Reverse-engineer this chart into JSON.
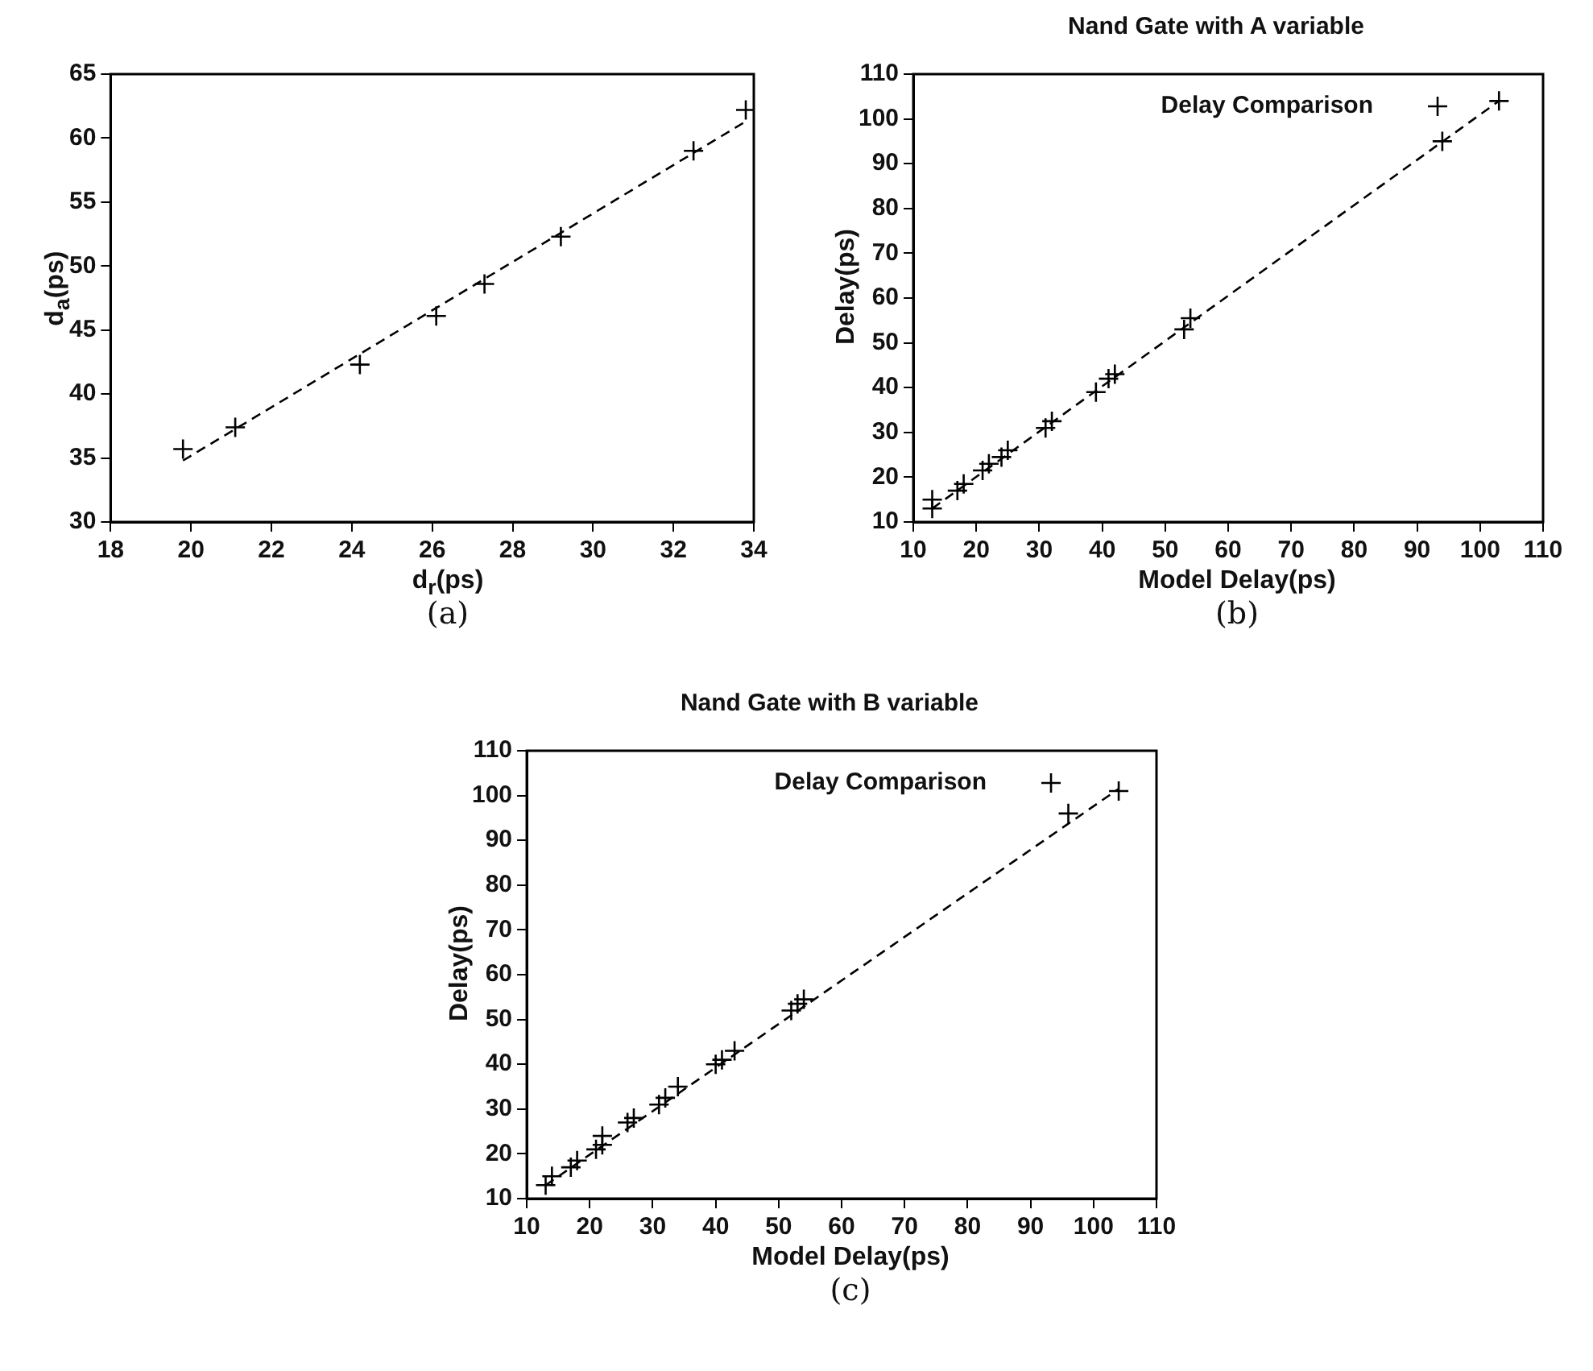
{
  "chart_data": [
    {
      "type": "scatter",
      "xlabel": "d$_{r}$(ps)",
      "ylabel": "d$_{a}$(ps)",
      "annotations": [
        "(a)"
      ],
      "xlim": [
        18,
        34
      ],
      "xticks": [
        18,
        20,
        22,
        24,
        26,
        28,
        30,
        32,
        34
      ],
      "ylim": [
        30,
        65
      ],
      "yticks": [
        30,
        35,
        40,
        45,
        50,
        55,
        60,
        65
      ],
      "grid": false,
      "legend": false,
      "series": [
        {
          "marker": "cross",
          "color": "#000000",
          "x": [
            19.8,
            21.1,
            24.2,
            26.1,
            27.3,
            29.2,
            32.5,
            33.8
          ],
          "values": [
            35.7,
            37.4,
            42.3,
            46.1,
            48.6,
            52.3,
            59.0,
            62.2
          ]
        },
        {
          "type": "line",
          "marker": "none",
          "color": "#000000",
          "line_style": "dashed",
          "x": [
            19.8,
            33.8
          ],
          "values": [
            34.8,
            61.3
          ]
        }
      ]
    },
    {
      "type": "scatter",
      "title": "Nand Gate with A variable",
      "xlabel": "Model Delay(ps)",
      "ylabel": "Delay(ps)",
      "annotations": [
        "(b)"
      ],
      "xlim": [
        10,
        110
      ],
      "xticks": [
        10,
        20,
        30,
        40,
        50,
        60,
        70,
        80,
        90,
        100,
        110
      ],
      "ylim": [
        10,
        110
      ],
      "yticks": [
        10,
        20,
        30,
        40,
        50,
        60,
        70,
        80,
        90,
        100,
        110
      ],
      "grid": false,
      "legend": "top",
      "series": [
        {
          "name": "Delay Comparison",
          "marker": "cross",
          "color": "#000000",
          "x": [
            13,
            13,
            17,
            18,
            21,
            22,
            24,
            25,
            31,
            32,
            39,
            41,
            42,
            53,
            54,
            94,
            103
          ],
          "values": [
            13,
            15,
            17,
            18.5,
            21.5,
            23,
            24.5,
            26,
            31,
            32.5,
            39,
            42,
            43,
            53,
            55.5,
            95,
            104
          ]
        },
        {
          "type": "line",
          "marker": "none",
          "color": "#000000",
          "line_style": "dashed",
          "x": [
            13,
            103
          ],
          "values": [
            13,
            104
          ]
        }
      ]
    },
    {
      "type": "scatter",
      "title": "Nand Gate with B variable",
      "xlabel": "Model Delay(ps)",
      "ylabel": "Delay(ps)",
      "annotations": [
        "(c)"
      ],
      "xlim": [
        10,
        110
      ],
      "xticks": [
        10,
        20,
        30,
        40,
        50,
        60,
        70,
        80,
        90,
        100,
        110
      ],
      "ylim": [
        10,
        110
      ],
      "yticks": [
        10,
        20,
        30,
        40,
        50,
        60,
        70,
        80,
        90,
        100,
        110
      ],
      "grid": false,
      "legend": "top",
      "series": [
        {
          "name": "Delay Comparison",
          "marker": "cross",
          "color": "#000000",
          "x": [
            13,
            14,
            17,
            18,
            21,
            22,
            22,
            26,
            27,
            31,
            32,
            34,
            40,
            41,
            43,
            52,
            53,
            54,
            96,
            104
          ],
          "values": [
            13,
            15,
            17,
            18.5,
            21,
            22,
            24,
            27,
            28,
            31,
            32.5,
            35,
            40,
            41,
            43,
            52,
            53.5,
            54.5,
            96,
            101
          ]
        },
        {
          "type": "line",
          "marker": "none",
          "color": "#000000",
          "line_style": "dashed",
          "x": [
            13,
            104
          ],
          "values": [
            13,
            101.5
          ]
        }
      ]
    }
  ]
}
